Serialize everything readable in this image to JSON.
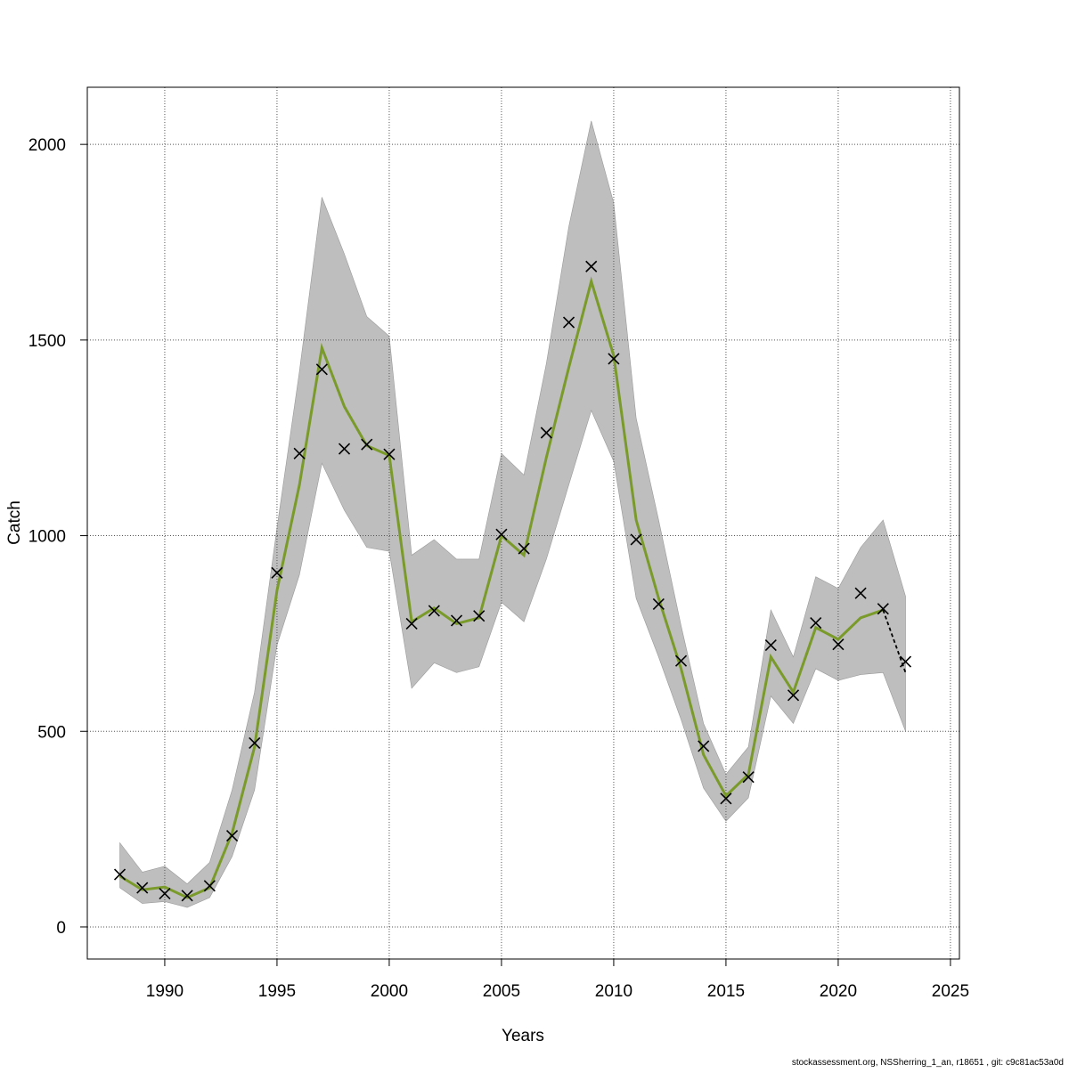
{
  "chart_data": {
    "type": "line",
    "xlabel": "Years",
    "ylabel": "Catch",
    "x": [
      1988,
      1989,
      1990,
      1991,
      1992,
      1993,
      1994,
      1995,
      1996,
      1997,
      1998,
      1999,
      2000,
      2001,
      2002,
      2003,
      2004,
      2005,
      2006,
      2007,
      2008,
      2009,
      2010,
      2011,
      2012,
      2013,
      2014,
      2015,
      2016,
      2017,
      2018,
      2019,
      2020,
      2021,
      2022,
      2023
    ],
    "band": {
      "color": "#bebebe",
      "upper": [
        215,
        140,
        155,
        110,
        165,
        350,
        600,
        1020,
        1420,
        1865,
        1720,
        1560,
        1510,
        950,
        990,
        940,
        940,
        1210,
        1155,
        1440,
        1790,
        2060,
        1850,
        1300,
        1040,
        770,
        520,
        390,
        460,
        810,
        690,
        895,
        865,
        970,
        1040,
        845
      ],
      "lower": [
        100,
        60,
        65,
        50,
        75,
        180,
        350,
        720,
        900,
        1185,
        1065,
        970,
        960,
        610,
        675,
        650,
        665,
        830,
        780,
        940,
        1130,
        1320,
        1190,
        840,
        690,
        530,
        355,
        270,
        330,
        590,
        520,
        660,
        630,
        645,
        650,
        500
      ]
    },
    "series": [
      {
        "color": "#7a9a2a",
        "mode": "line",
        "values": [
          130,
          95,
          102,
          75,
          100,
          240,
          460,
          860,
          1130,
          1480,
          1330,
          1230,
          1205,
          780,
          815,
          775,
          790,
          1000,
          950,
          1200,
          1430,
          1650,
          1460,
          1040,
          840,
          660,
          440,
          335,
          390,
          690,
          600,
          765,
          735,
          790,
          810,
          null
        ]
      },
      {
        "color": "#000000",
        "mode": "dashed",
        "values": [
          null,
          null,
          null,
          null,
          null,
          null,
          null,
          null,
          null,
          null,
          null,
          null,
          null,
          null,
          null,
          null,
          null,
          null,
          null,
          null,
          null,
          null,
          null,
          null,
          null,
          null,
          null,
          null,
          null,
          null,
          null,
          null,
          null,
          null,
          810,
          650
        ]
      },
      {
        "color": "#000000",
        "mode": "markers",
        "values": [
          134,
          100,
          85,
          80,
          105,
          233,
          470,
          905,
          1210,
          1425,
          1222,
          1233,
          1208,
          775,
          808,
          783,
          795,
          1003,
          967,
          1263,
          1545,
          1688,
          1452,
          990,
          825,
          680,
          462,
          328,
          383,
          720,
          592,
          777,
          722,
          853,
          813,
          678
        ]
      }
    ],
    "xlim": [
      1986.55,
      2025.4
    ],
    "ylim": [
      -82,
      2146
    ],
    "xticks": [
      1990,
      1995,
      2000,
      2005,
      2010,
      2015,
      2020,
      2025
    ],
    "yticks": [
      0,
      500,
      1000,
      1500,
      2000
    ],
    "grid": true
  },
  "footer": "stockassessment.org, NSSherring_1_an, r18651 , git: c9c81ac53a0d"
}
